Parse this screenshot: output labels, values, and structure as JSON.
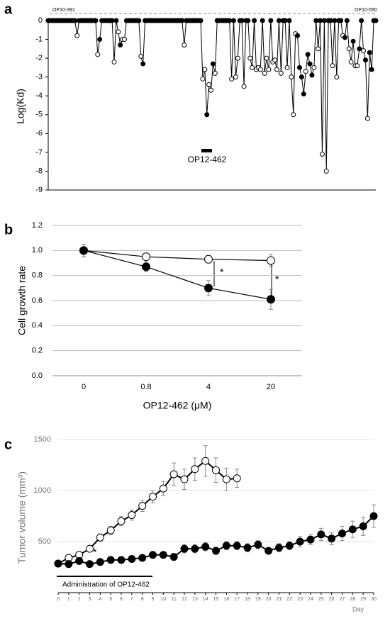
{
  "chart_data": [
    {
      "type": "line",
      "panel_label": "a",
      "y_label": "Log(Kd)",
      "annotations": [
        "OP10-391",
        "OP10-550",
        "OP12-462"
      ],
      "ylim": [
        -9,
        0
      ],
      "yticks": [
        0,
        -1,
        -2,
        -3,
        -4,
        -5,
        -6,
        -7,
        -8,
        -9
      ],
      "grid": false,
      "series": [
        {
          "color": "#000000",
          "values": [
            0,
            0,
            0,
            0,
            0,
            0,
            0,
            0,
            0,
            0,
            0,
            0,
            0,
            0,
            -0.8,
            0,
            0,
            0,
            0,
            0,
            0,
            0,
            0,
            0,
            -1.8,
            -1.0,
            0,
            0,
            0,
            0,
            0,
            0,
            -2.2,
            0,
            -0.6,
            -1.3,
            -1.0,
            -1.0,
            0,
            0,
            0,
            0,
            0,
            0,
            0,
            -1.9,
            -2.3,
            0,
            0,
            0,
            0,
            0,
            0,
            0,
            0,
            0,
            0,
            0,
            0,
            0,
            0,
            0,
            0,
            0,
            0,
            0,
            -1.3,
            0,
            0,
            0,
            0,
            0,
            0,
            0,
            0,
            -3.1,
            -2.6,
            -5.0,
            -3.4,
            -3.7,
            -2.3,
            -2.8,
            0,
            0,
            0,
            0,
            0,
            0,
            0,
            -3.1,
            0,
            -3.0,
            -2.0,
            0,
            0,
            -3.5,
            0,
            0,
            -2.0,
            -2.5,
            0,
            -2.6,
            -2.5,
            -2.6,
            0,
            -2.8,
            -2.0,
            -2.6,
            0,
            -2.2,
            -2.1,
            -2.6,
            0,
            -2.8,
            0,
            0,
            -2.5,
            0,
            -3.0,
            -5.0,
            -0.7,
            -0.8,
            -2.5,
            -3.0,
            -3.9,
            -2.7,
            -1.8,
            -2.3,
            -2.9,
            -2.5,
            0,
            -1.5,
            0,
            -7.1,
            0,
            -8.0,
            0,
            0,
            -2.4,
            0,
            -3.0,
            0,
            0,
            -0.8,
            -0.9,
            0,
            -1.5,
            -2.2,
            -1.1,
            -2.4,
            -2.4,
            -1.5,
            0,
            -1.6,
            -2.1,
            -5.2,
            -1.7,
            -2.6,
            0,
            0
          ],
          "marker_colors": [
            "#000",
            "#000",
            "#000",
            "#000",
            "#000",
            "#000",
            "#000",
            "#000",
            "#000",
            "#000",
            "#000",
            "#000",
            "#000",
            "#000",
            "#fff",
            "#000",
            "#000",
            "#000",
            "#000",
            "#000",
            "#000",
            "#000",
            "#000",
            "#000",
            "#fff",
            "#000",
            "#000",
            "#000",
            "#000",
            "#000",
            "#000",
            "#000",
            "#fff",
            "#000",
            "#fff",
            "#000",
            "#fff",
            "#fff",
            "#000",
            "#000",
            "#000",
            "#000",
            "#000",
            "#000",
            "#000",
            "#fff",
            "#000",
            "#000",
            "#000",
            "#000",
            "#000",
            "#000",
            "#000",
            "#000",
            "#000",
            "#000",
            "#000",
            "#000",
            "#000",
            "#000",
            "#000",
            "#000",
            "#000",
            "#000",
            "#000",
            "#000",
            "#fff",
            "#000",
            "#000",
            "#000",
            "#000",
            "#000",
            "#000",
            "#000",
            "#000",
            "#fff",
            "#fff",
            "#000",
            "#fff",
            "#fff",
            "#000",
            "#fff",
            "#000",
            "#000",
            "#000",
            "#000",
            "#000",
            "#000",
            "#000",
            "#fff",
            "#000",
            "#fff",
            "#fff",
            "#000",
            "#000",
            "#fff",
            "#000",
            "#000",
            "#fff",
            "#fff",
            "#000",
            "#fff",
            "#fff",
            "#fff",
            "#000",
            "#fff",
            "#fff",
            "#fff",
            "#000",
            "#fff",
            "#fff",
            "#fff",
            "#000",
            "#fff",
            "#000",
            "#000",
            "#fff",
            "#000",
            "#fff",
            "#fff",
            "#fff",
            "#000",
            "#000",
            "#000",
            "#000",
            "#fff",
            "#000",
            "#000",
            "#000",
            "#fff",
            "#000",
            "#fff",
            "#000",
            "#fff",
            "#000",
            "#fff",
            "#000",
            "#000",
            "#fff",
            "#000",
            "#fff",
            "#000",
            "#000",
            "#fff",
            "#000",
            "#000",
            "#fff",
            "#fff",
            "#000",
            "#fff",
            "#fff",
            "#000",
            "#000",
            "#fff",
            "#000",
            "#fff",
            "#000",
            "#000",
            "#000",
            "#000"
          ]
        }
      ]
    },
    {
      "type": "line",
      "panel_label": "b",
      "x_label": "OP12-462 (μM)",
      "y_label": "Cell growth rate",
      "annotations": [
        "*",
        "*"
      ],
      "categories": [
        "0",
        "0.8",
        "4",
        "20"
      ],
      "ylim": [
        0,
        1.2
      ],
      "yticks": [
        {
          "value": 0,
          "label": "0.0"
        },
        {
          "value": 0.2,
          "label": "0.2"
        },
        {
          "value": 0.4,
          "label": "0.4"
        },
        {
          "value": 0.6,
          "label": "0.6"
        },
        {
          "value": 0.8,
          "label": "0.8"
        },
        {
          "value": 1,
          "label": "1.0"
        },
        {
          "value": 1.2,
          "label": "1.2"
        }
      ],
      "grid": true,
      "series": [
        {
          "color": "#ffffff",
          "values": [
            1.0,
            0.95,
            0.93,
            0.92
          ],
          "errors": [
            0.05,
            0.02,
            0.03,
            0.05
          ]
        },
        {
          "color": "#000000",
          "values": [
            1.0,
            0.87,
            0.7,
            0.61
          ],
          "errors": [
            0.05,
            0.04,
            0.06,
            0.08
          ]
        }
      ]
    },
    {
      "type": "line",
      "panel_label": "c",
      "x_label": "Day",
      "y_label": "Tumor volume (mm³)",
      "annotations": [
        "*",
        "Administration of OP12-462"
      ],
      "x": [
        0,
        1,
        2,
        3,
        4,
        5,
        6,
        7,
        8,
        9,
        10,
        11,
        12,
        13,
        14,
        15,
        16,
        17,
        18,
        19,
        20,
        21,
        22,
        23,
        24,
        25,
        26,
        27,
        28,
        29,
        30
      ],
      "xlim": [
        0,
        30
      ],
      "xticks": [
        0,
        1,
        2,
        3,
        4,
        5,
        6,
        7,
        8,
        9,
        10,
        11,
        12,
        13,
        14,
        15,
        16,
        17,
        18,
        19,
        20,
        21,
        22,
        23,
        24,
        25,
        26,
        27,
        28,
        29,
        30
      ],
      "ylim": [
        0,
        1500
      ],
      "yticks": [
        500,
        1000,
        1500
      ],
      "grid": true,
      "series": [
        {
          "color": "#ffffff",
          "values": [
            285,
            340,
            370,
            430,
            540,
            610,
            700,
            760,
            850,
            940,
            1020,
            1160,
            1110,
            1210,
            1290,
            1200,
            1110,
            1120,
            null,
            null,
            null,
            null,
            null,
            null,
            null,
            null,
            null,
            null,
            null,
            null,
            null
          ],
          "errors": [
            15,
            20,
            25,
            30,
            35,
            40,
            45,
            50,
            55,
            60,
            70,
            110,
            100,
            110,
            150,
            120,
            110,
            90,
            null,
            null,
            null,
            null,
            null,
            null,
            null,
            null,
            null,
            null,
            null,
            null,
            null
          ]
        },
        {
          "color": "#000000",
          "values": [
            285,
            280,
            310,
            280,
            300,
            320,
            320,
            330,
            340,
            370,
            370,
            350,
            430,
            430,
            450,
            410,
            460,
            460,
            440,
            470,
            410,
            440,
            460,
            500,
            520,
            570,
            530,
            580,
            620,
            650,
            750
          ],
          "errors": [
            20,
            20,
            25,
            20,
            20,
            20,
            20,
            25,
            25,
            25,
            25,
            20,
            40,
            40,
            40,
            35,
            40,
            40,
            40,
            40,
            30,
            40,
            40,
            50,
            50,
            60,
            60,
            70,
            80,
            90,
            110
          ]
        }
      ]
    }
  ]
}
